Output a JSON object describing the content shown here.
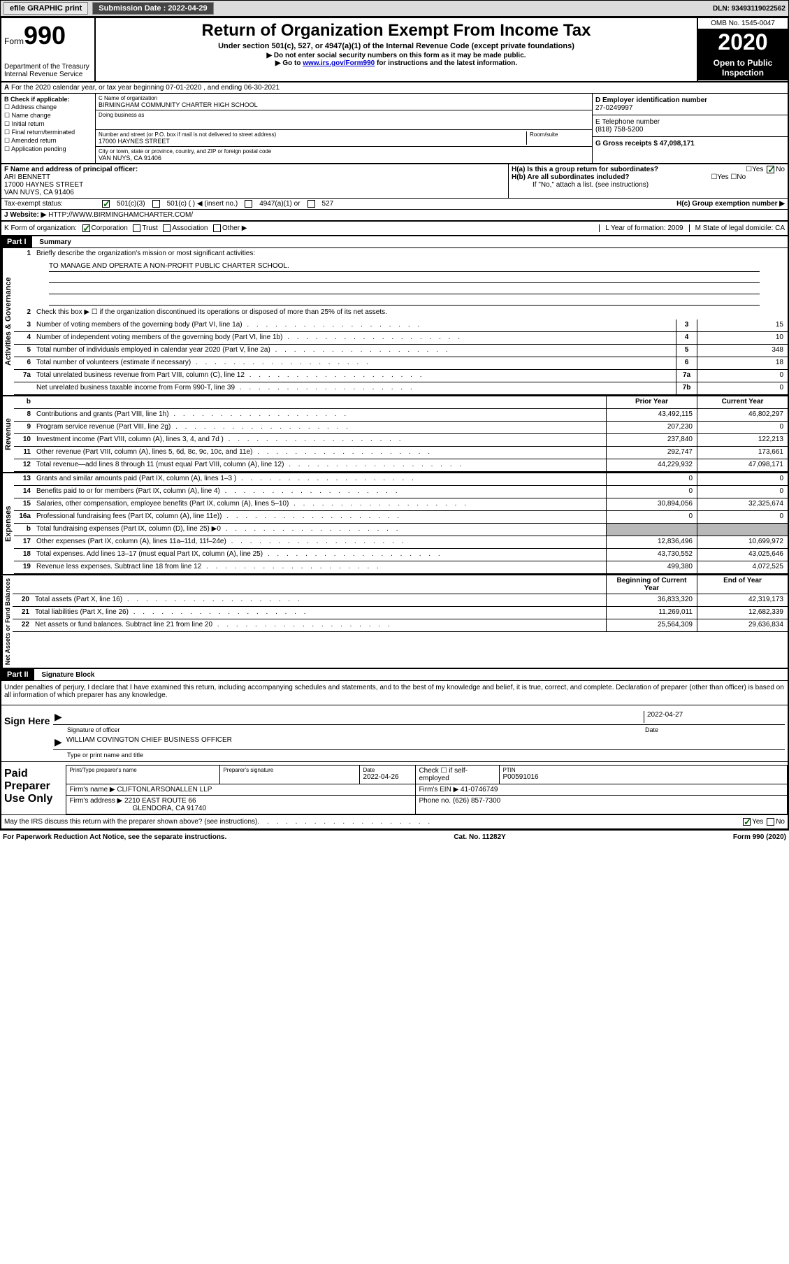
{
  "header": {
    "efile_label": "efile GRAPHIC print",
    "submission_label": "Submission Date : 2022-04-29",
    "dln_label": "DLN: 93493119022562"
  },
  "form_header": {
    "form_prefix": "Form",
    "form_number": "990",
    "dept": "Department of the Treasury Internal Revenue Service",
    "title": "Return of Organization Exempt From Income Tax",
    "subtitle": "Under section 501(c), 527, or 4947(a)(1) of the Internal Revenue Code (except private foundations)",
    "note1": "▶ Do not enter social security numbers on this form as it may be made public.",
    "note2_pre": "▶ Go to ",
    "note2_link": "www.irs.gov/Form990",
    "note2_post": " for instructions and the latest information.",
    "omb": "OMB No. 1545-0047",
    "year": "2020",
    "open_public": "Open to Public Inspection"
  },
  "section_a": "For the 2020 calendar year, or tax year beginning 07-01-2020   , and ending 06-30-2021",
  "col_b": {
    "header": "B Check if applicable:",
    "items": [
      "Address change",
      "Name change",
      "Initial return",
      "Final return/terminated",
      "Amended return",
      "Application pending"
    ]
  },
  "col_c": {
    "name_label": "C Name of organization",
    "name": "BIRMINGHAM COMMUNITY CHARTER HIGH SCHOOL",
    "dba_label": "Doing business as",
    "addr_label": "Number and street (or P.O. box if mail is not delivered to street address)",
    "room_label": "Room/suite",
    "addr": "17000 HAYNES STREET",
    "city_label": "City or town, state or province, country, and ZIP or foreign postal code",
    "city": "VAN NUYS, CA  91406"
  },
  "col_d": {
    "ein_label": "D Employer identification number",
    "ein": "27-0249997",
    "phone_label": "E Telephone number",
    "phone": "(818) 758-5200",
    "gross_label": "G Gross receipts $ 47,098,171"
  },
  "section_f": {
    "label": "F Name and address of principal officer:",
    "name": "ARI BENNETT",
    "addr1": "17000 HAYNES STREET",
    "addr2": "VAN NUYS, CA  91406"
  },
  "section_h": {
    "ha_label": "H(a)  Is this a group return for subordinates?",
    "hb_label": "H(b)  Are all subordinates included?",
    "hb_note": "If \"No,\" attach a list. (see instructions)",
    "hc_label": "H(c)  Group exemption number ▶"
  },
  "tax_status": {
    "label": "Tax-exempt status:",
    "opts": [
      "501(c)(3)",
      "501(c) (  ) ◀ (insert no.)",
      "4947(a)(1) or",
      "527"
    ]
  },
  "website": {
    "label": "J   Website: ▶",
    "value": "HTTP://WWW.BIRMINGHAMCHARTER.COM/"
  },
  "k_row": {
    "k": "K Form of organization:",
    "opts": [
      "Corporation",
      "Trust",
      "Association",
      "Other ▶"
    ],
    "l": "L Year of formation: 2009",
    "m": "M State of legal domicile: CA"
  },
  "part1": {
    "header": "Part I",
    "title": "Summary",
    "q1": "Briefly describe the organization's mission or most significant activities:",
    "mission": "TO MANAGE AND OPERATE A NON-PROFIT PUBLIC CHARTER SCHOOL.",
    "q2": "Check this box ▶ ☐  if the organization discontinued its operations or disposed of more than 25% of its net assets.",
    "rows_gov": [
      {
        "n": "3",
        "t": "Number of voting members of the governing body (Part VI, line 1a)",
        "box": "3",
        "v": "15"
      },
      {
        "n": "4",
        "t": "Number of independent voting members of the governing body (Part VI, line 1b)",
        "box": "4",
        "v": "10"
      },
      {
        "n": "5",
        "t": "Total number of individuals employed in calendar year 2020 (Part V, line 2a)",
        "box": "5",
        "v": "348"
      },
      {
        "n": "6",
        "t": "Total number of volunteers (estimate if necessary)",
        "box": "6",
        "v": "18"
      },
      {
        "n": "7a",
        "t": "Total unrelated business revenue from Part VIII, column (C), line 12",
        "box": "7a",
        "v": "0"
      },
      {
        "n": "",
        "t": "Net unrelated business taxable income from Form 990-T, line 39",
        "box": "7b",
        "v": "0"
      }
    ],
    "year_hdr": {
      "prior": "Prior Year",
      "current": "Current Year"
    },
    "rows_rev": [
      {
        "n": "8",
        "t": "Contributions and grants (Part VIII, line 1h)",
        "p": "43,492,115",
        "c": "46,802,297"
      },
      {
        "n": "9",
        "t": "Program service revenue (Part VIII, line 2g)",
        "p": "207,230",
        "c": "0"
      },
      {
        "n": "10",
        "t": "Investment income (Part VIII, column (A), lines 3, 4, and 7d )",
        "p": "237,840",
        "c": "122,213"
      },
      {
        "n": "11",
        "t": "Other revenue (Part VIII, column (A), lines 5, 6d, 8c, 9c, 10c, and 11e)",
        "p": "292,747",
        "c": "173,661"
      },
      {
        "n": "12",
        "t": "Total revenue—add lines 8 through 11 (must equal Part VIII, column (A), line 12)",
        "p": "44,229,932",
        "c": "47,098,171"
      }
    ],
    "rows_exp": [
      {
        "n": "13",
        "t": "Grants and similar amounts paid (Part IX, column (A), lines 1–3 )",
        "p": "0",
        "c": "0"
      },
      {
        "n": "14",
        "t": "Benefits paid to or for members (Part IX, column (A), line 4)",
        "p": "0",
        "c": "0"
      },
      {
        "n": "15",
        "t": "Salaries, other compensation, employee benefits (Part IX, column (A), lines 5–10)",
        "p": "30,894,056",
        "c": "32,325,674"
      },
      {
        "n": "16a",
        "t": "Professional fundraising fees (Part IX, column (A), line 11e))",
        "p": "0",
        "c": "0"
      },
      {
        "n": "b",
        "t": "Total fundraising expenses (Part IX, column (D), line 25) ▶0",
        "p": "SHADED",
        "c": "SHADED"
      },
      {
        "n": "17",
        "t": "Other expenses (Part IX, column (A), lines 11a–11d, 11f–24e)",
        "p": "12,836,496",
        "c": "10,699,972"
      },
      {
        "n": "18",
        "t": "Total expenses. Add lines 13–17 (must equal Part IX, column (A), line 25)",
        "p": "43,730,552",
        "c": "43,025,646"
      },
      {
        "n": "19",
        "t": "Revenue less expenses. Subtract line 18 from line 12",
        "p": "499,380",
        "c": "4,072,525"
      }
    ],
    "net_hdr": {
      "beg": "Beginning of Current Year",
      "end": "End of Year"
    },
    "rows_net": [
      {
        "n": "20",
        "t": "Total assets (Part X, line 16)",
        "p": "36,833,320",
        "c": "42,319,173"
      },
      {
        "n": "21",
        "t": "Total liabilities (Part X, line 26)",
        "p": "11,269,011",
        "c": "12,682,339"
      },
      {
        "n": "22",
        "t": "Net assets or fund balances. Subtract line 21 from line 20",
        "p": "25,564,309",
        "c": "29,636,834"
      }
    ],
    "side_labels": {
      "gov": "Activities & Governance",
      "rev": "Revenue",
      "exp": "Expenses",
      "net": "Net Assets or Fund Balances"
    }
  },
  "part2": {
    "header": "Part II",
    "title": "Signature Block",
    "declaration": "Under penalties of perjury, I declare that I have examined this return, including accompanying schedules and statements, and to the best of my knowledge and belief, it is true, correct, and complete. Declaration of preparer (other than officer) is based on all information of which preparer has any knowledge.",
    "sign_here": "Sign Here",
    "sig_officer": "Signature of officer",
    "sig_date": "2022-04-27",
    "sig_date_label": "Date",
    "officer_name": "WILLIAM COVINGTON  CHIEF BUSINESS OFFICER",
    "officer_name_label": "Type or print name and title",
    "paid_label": "Paid Preparer Use Only",
    "prep_name_label": "Print/Type preparer's name",
    "prep_sig_label": "Preparer's signature",
    "prep_date_label": "Date",
    "prep_date": "2022-04-26",
    "prep_check_label": "Check ☐ if self-employed",
    "ptin_label": "PTIN",
    "ptin": "P00591016",
    "firm_name_label": "Firm's name     ▶",
    "firm_name": "CLIFTONLARSONALLEN LLP",
    "firm_ein_label": "Firm's EIN ▶",
    "firm_ein": "41-0746749",
    "firm_addr_label": "Firm's address ▶",
    "firm_addr": "2210 EAST ROUTE 66",
    "firm_city": "GLENDORA, CA  91740",
    "firm_phone_label": "Phone no.",
    "firm_phone": "(626) 857-7300",
    "discuss": "May the IRS discuss this return with the preparer shown above? (see instructions)"
  },
  "footer": {
    "paperwork": "For Paperwork Reduction Act Notice, see the separate instructions.",
    "cat": "Cat. No. 11282Y",
    "form": "Form 990 (2020)"
  }
}
